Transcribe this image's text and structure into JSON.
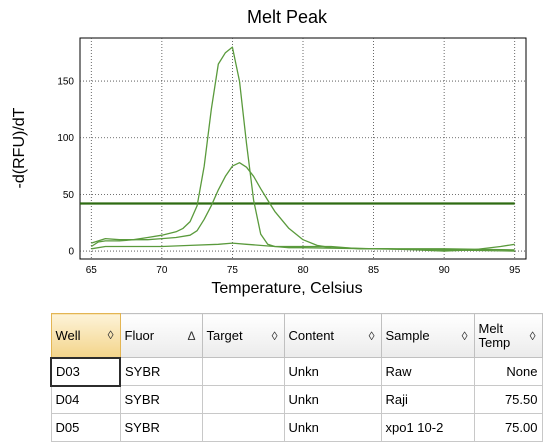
{
  "chart_data": {
    "type": "line",
    "title": "Melt Peak",
    "xlabel": "Temperature, Celsius",
    "ylabel": "-d(RFU)/dT",
    "xlim": [
      64.2,
      95.8
    ],
    "ylim": [
      -7,
      188
    ],
    "x_ticks": [
      65,
      70,
      75,
      80,
      85,
      90,
      95
    ],
    "y_ticks": [
      0,
      50,
      100,
      150
    ],
    "grid": true,
    "threshold": 42,
    "series": [
      {
        "color": "#5a9a3c",
        "x": [
          65,
          65.5,
          66,
          67,
          68,
          69,
          70,
          71,
          71.5,
          72,
          72.5,
          73,
          73.5,
          74,
          74.5,
          75,
          75.5,
          76,
          76.5,
          77,
          77.5,
          78,
          79,
          80,
          85,
          90,
          95
        ],
        "y": [
          4,
          8,
          9,
          9,
          10,
          12,
          14,
          17,
          20,
          26,
          40,
          75,
          125,
          165,
          175,
          180,
          150,
          95,
          45,
          15,
          6,
          4,
          3,
          3,
          2,
          2,
          1
        ]
      },
      {
        "color": "#5a9a3c",
        "x": [
          65,
          66,
          67,
          68,
          69,
          70,
          71,
          72,
          72.5,
          73,
          73.5,
          74,
          74.5,
          75,
          75.5,
          76,
          76.5,
          77,
          77.5,
          78,
          79,
          80,
          81,
          82,
          85,
          90,
          95
        ],
        "y": [
          7,
          11,
          10,
          10,
          10,
          11,
          12,
          14,
          18,
          28,
          40,
          54,
          66,
          75,
          78,
          74,
          66,
          55,
          45,
          35,
          20,
          10,
          5,
          3,
          2,
          1,
          0
        ]
      },
      {
        "color": "#5a9a3c",
        "x": [
          65,
          66,
          68,
          70,
          72,
          74,
          75,
          76,
          78,
          80,
          82,
          84,
          86,
          88,
          90,
          92,
          94,
          95
        ],
        "y": [
          2,
          4,
          4,
          4,
          5,
          6,
          7,
          6,
          4,
          4,
          4,
          2,
          2,
          1,
          0,
          1,
          4,
          6
        ]
      }
    ]
  },
  "table": {
    "headers": [
      {
        "label": "Well",
        "sort_icon": "◊",
        "sorted": true
      },
      {
        "label": "Fluor",
        "sort_icon": "Δ",
        "sorted": false
      },
      {
        "label": "Target",
        "sort_icon": "◊",
        "sorted": false
      },
      {
        "label": "Content",
        "sort_icon": "◊",
        "sorted": false
      },
      {
        "label": "Sample",
        "sort_icon": "◊",
        "sorted": false
      },
      {
        "label": "Melt Temp",
        "sort_icon": "◊",
        "sorted": false
      }
    ],
    "rows": [
      [
        "D03",
        "SYBR",
        "",
        "Unkn",
        "Raw",
        "None"
      ],
      [
        "D04",
        "SYBR",
        "",
        "Unkn",
        "Raji",
        "75.50"
      ],
      [
        "D05",
        "SYBR",
        "",
        "Unkn",
        "xpo1 10-2",
        "75.00"
      ]
    ]
  }
}
